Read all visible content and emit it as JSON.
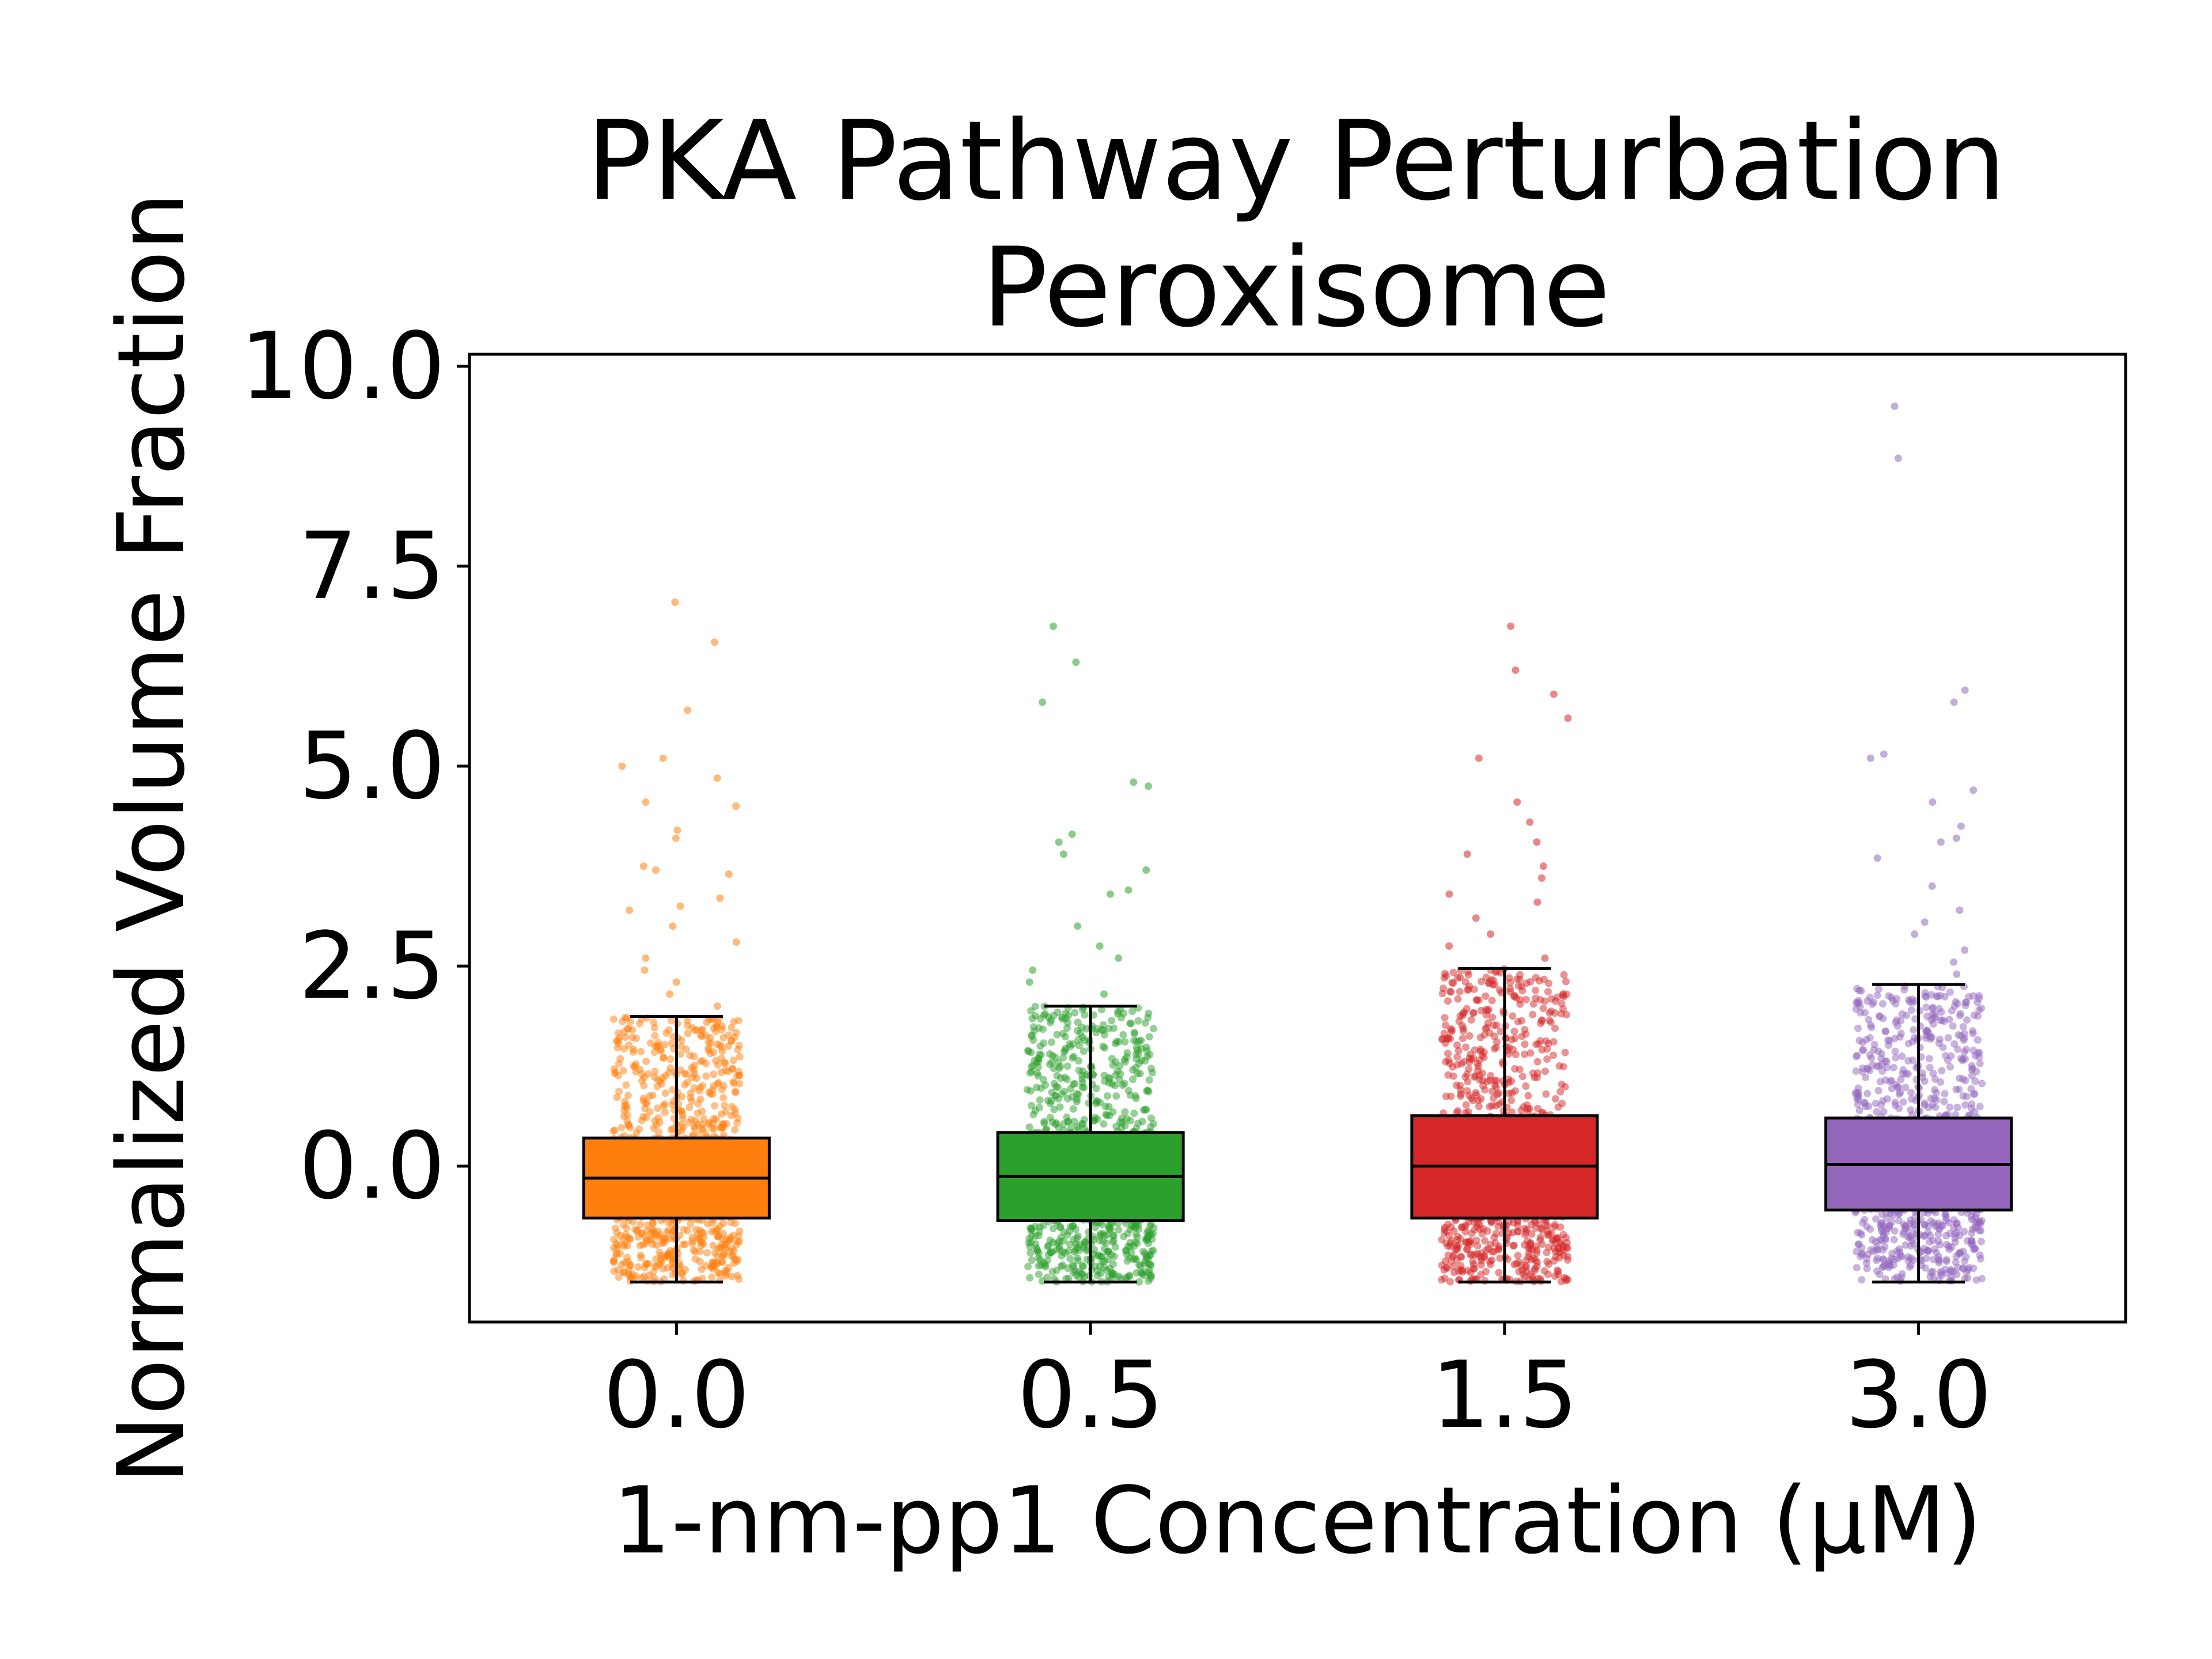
{
  "chart_data": {
    "type": "box",
    "title": "PKA Pathway Perturbation",
    "subtitle": "Peroxisome",
    "xlabel": "1-nm-pp1 Concentration (μM)",
    "ylabel": "Normalized Volume Fraction",
    "categories": [
      "0.0",
      "0.5",
      "1.5",
      "3.0"
    ],
    "y_ticks": [
      "0.0",
      "2.5",
      "5.0",
      "7.5",
      "10.0"
    ],
    "ylim": [
      -1.95,
      10.15
    ],
    "grid": false,
    "legend": "none",
    "series": [
      {
        "category": "0.0",
        "color": "#ff7f0e",
        "whisker_low": -1.45,
        "q1": -0.65,
        "median": -0.15,
        "q3": 0.35,
        "whisker_high": 1.87,
        "outliers_high": [
          2.0,
          2.15,
          2.3,
          2.45,
          2.6,
          2.8,
          3.0,
          3.2,
          3.25,
          3.35,
          3.65,
          3.7,
          3.75,
          4.1,
          4.2,
          4.5,
          4.55,
          4.85,
          5.0,
          5.1,
          5.7,
          6.55,
          7.05
        ]
      },
      {
        "category": "0.5",
        "color": "#2ca02c",
        "whisker_low": -1.45,
        "q1": -0.68,
        "median": -0.13,
        "q3": 0.42,
        "whisker_high": 2.0,
        "outliers_high": [
          2.15,
          2.3,
          2.45,
          2.6,
          2.75,
          3.0,
          3.4,
          3.45,
          3.7,
          3.9,
          4.05,
          4.15,
          4.75,
          4.8,
          5.8,
          6.3,
          6.75
        ]
      },
      {
        "category": "1.5",
        "color": "#d62728",
        "whisker_low": -1.45,
        "q1": -0.65,
        "median": 0.0,
        "q3": 0.63,
        "whisker_high": 2.47,
        "outliers_high": [
          2.6,
          2.75,
          2.9,
          3.1,
          3.3,
          3.4,
          3.6,
          3.75,
          3.9,
          4.05,
          4.3,
          4.55,
          5.1,
          5.6,
          5.9,
          6.2,
          6.75
        ]
      },
      {
        "category": "3.0",
        "color": "#9467bd",
        "whisker_low": -1.45,
        "q1": -0.55,
        "median": 0.02,
        "q3": 0.6,
        "whisker_high": 2.27,
        "outliers_high": [
          2.4,
          2.55,
          2.7,
          2.9,
          3.05,
          3.2,
          3.5,
          3.85,
          4.05,
          4.1,
          4.25,
          4.55,
          4.7,
          5.1,
          5.15,
          5.8,
          5.95,
          8.85,
          9.5
        ]
      }
    ]
  }
}
